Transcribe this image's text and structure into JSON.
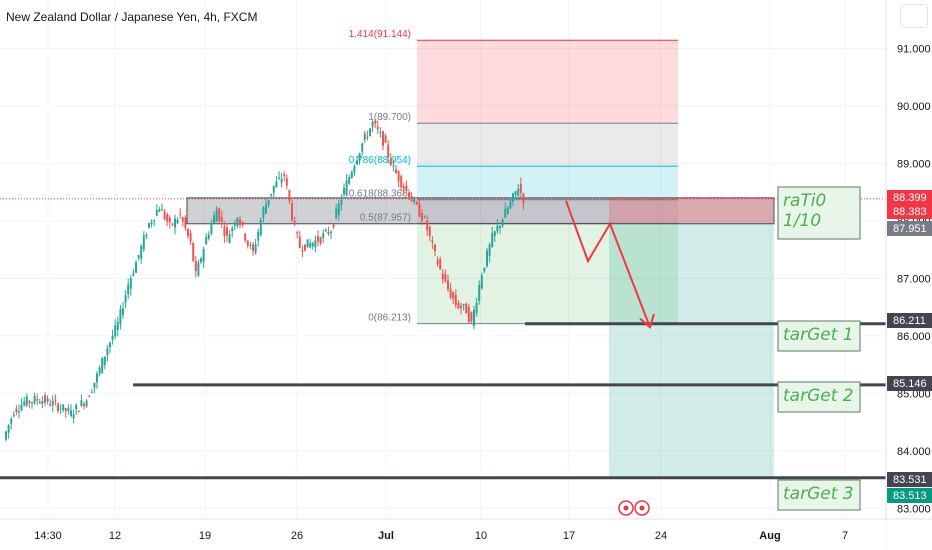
{
  "chart": {
    "title": "New Zealand Dollar / Japanese Yen, 4h, FXCM",
    "symbol": "NZDJPY",
    "timeframe": "4h",
    "source": "FXCM",
    "colors": {
      "up_candle": "#26a69a",
      "down_candle": "#ef5350",
      "grid": "#f0f3fa",
      "axis_text": "#131722",
      "level_line": "#434651",
      "fib_red": "#f23645",
      "fib_teal": "#00bcd4",
      "fib_gray": "#787b86",
      "annotation_green": "#4caf50",
      "annotation_box_fill": "#e8f5e9",
      "arrow": "#f23645",
      "current_price_bg": "#f23645",
      "target_green_bg": "#089981"
    }
  },
  "chart_data": {
    "type": "candlestick",
    "price_axis": {
      "ylim": [
        82.9,
        91.6
      ],
      "ticks": [
        "91.000",
        "90.000",
        "89.000",
        "88.000",
        "87.000",
        "86.000",
        "85.000",
        "84.000",
        "83.000"
      ],
      "tick_values": [
        91,
        90,
        89,
        88,
        87,
        86,
        85,
        84,
        83
      ]
    },
    "time_axis": {
      "ticks": [
        "14:30",
        "12",
        "19",
        "26",
        "Jul",
        "10",
        "17",
        "24",
        "Aug",
        "7"
      ],
      "bold_ticks": [
        "Jul",
        "Aug"
      ]
    },
    "price_path": [
      [
        0,
        84.2
      ],
      [
        4,
        84.7
      ],
      [
        8,
        84.85
      ],
      [
        14,
        84.9
      ],
      [
        20,
        84.8
      ],
      [
        26,
        84.65
      ],
      [
        32,
        84.9
      ],
      [
        36,
        85.3
      ],
      [
        40,
        85.8
      ],
      [
        44,
        86.2
      ],
      [
        48,
        86.9
      ],
      [
        52,
        87.4
      ],
      [
        56,
        87.95
      ],
      [
        60,
        88.25
      ],
      [
        64,
        87.9
      ],
      [
        68,
        88.1
      ],
      [
        72,
        87.6
      ],
      [
        74,
        87.05
      ],
      [
        78,
        87.7
      ],
      [
        82,
        88.2
      ],
      [
        86,
        87.7
      ],
      [
        90,
        88.1
      ],
      [
        94,
        87.6
      ],
      [
        96,
        87.45
      ],
      [
        100,
        88.2
      ],
      [
        104,
        88.6
      ],
      [
        108,
        88.8
      ],
      [
        112,
        87.85
      ],
      [
        114,
        87.55
      ],
      [
        118,
        87.6
      ],
      [
        122,
        87.7
      ],
      [
        126,
        87.85
      ],
      [
        130,
        88.4
      ],
      [
        134,
        88.9
      ],
      [
        138,
        89.35
      ],
      [
        142,
        89.7
      ],
      [
        146,
        89.4
      ],
      [
        150,
        88.9
      ],
      [
        154,
        88.6
      ],
      [
        158,
        88.3
      ],
      [
        162,
        88.0
      ],
      [
        166,
        87.4
      ],
      [
        170,
        86.9
      ],
      [
        174,
        86.55
      ],
      [
        178,
        86.45
      ],
      [
        180,
        86.21
      ],
      [
        184,
        87.1
      ],
      [
        188,
        87.7
      ],
      [
        192,
        88.05
      ],
      [
        196,
        88.4
      ],
      [
        198,
        88.6
      ],
      [
        200,
        88.38
      ]
    ],
    "fibonacci": {
      "levels": [
        {
          "label": "1.414(91.144)",
          "value": 91.144,
          "color": "red"
        },
        {
          "label": "1(89.700)",
          "value": 89.7,
          "color": "gray"
        },
        {
          "label": "0.786(88.954)",
          "value": 88.954,
          "color": "teal"
        },
        {
          "label": "0.618(88.368)",
          "value": 88.368,
          "color": "gray"
        },
        {
          "label": "0.5(87.957)",
          "value": 87.957,
          "color": "gray"
        },
        {
          "label": "0(86.213)",
          "value": 86.213,
          "color": "gray"
        }
      ]
    },
    "zones": {
      "supply_zone": {
        "low": 87.95,
        "high": 88.4
      },
      "position": {
        "entry": 88.383,
        "stop": 88.399,
        "target": 83.513
      }
    },
    "horizontal_levels": [
      86.211,
      85.146,
      83.531
    ],
    "price_labels": [
      {
        "text": "88.399",
        "value": 88.399,
        "style": "red"
      },
      {
        "text": "88.383",
        "value": 88.383,
        "style": "red"
      },
      {
        "text": "87.951",
        "value": 87.951,
        "style": "gray"
      },
      {
        "text": "86.211",
        "value": 86.211,
        "style": "dark"
      },
      {
        "text": "85.146",
        "value": 85.146,
        "style": "dark"
      },
      {
        "text": "83.531",
        "value": 83.531,
        "style": "dark"
      },
      {
        "text": "83.513",
        "value": 83.513,
        "style": "green"
      }
    ],
    "annotations": [
      {
        "text": "raTi0",
        "value": 88.25
      },
      {
        "text": "1/10",
        "value": 87.85
      },
      {
        "text": "tarGet 1",
        "value": 85.87
      },
      {
        "text": "tarGet 2",
        "value": 84.87
      },
      {
        "text": "tarGet 3",
        "value": 83.27
      }
    ]
  }
}
